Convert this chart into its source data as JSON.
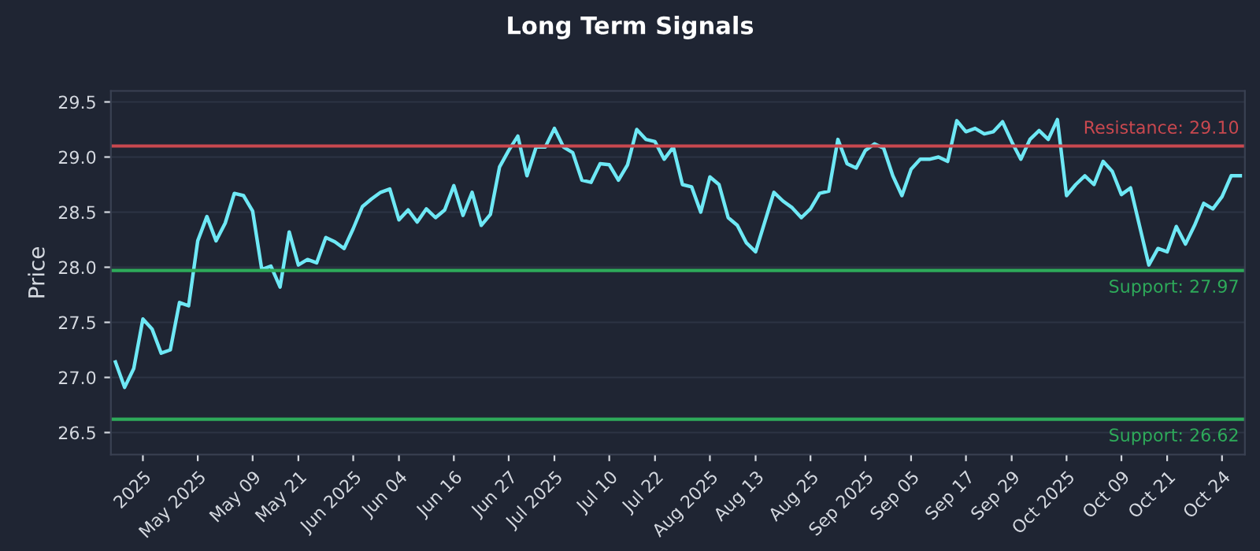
{
  "chart_data": {
    "type": "line",
    "title": "Long Term Signals",
    "ylabel": "Price",
    "categories": [
      null,
      null,
      null,
      "2025",
      null,
      null,
      null,
      null,
      null,
      "May 2025",
      null,
      null,
      null,
      null,
      null,
      "May 09",
      null,
      null,
      null,
      null,
      "May 21",
      null,
      null,
      null,
      null,
      null,
      "Jun 2025",
      null,
      null,
      null,
      null,
      "Jun 04",
      null,
      null,
      null,
      null,
      null,
      "Jun 16",
      null,
      null,
      null,
      null,
      null,
      "Jun 27",
      null,
      null,
      null,
      null,
      "Jul 2025",
      null,
      null,
      null,
      null,
      null,
      "Jul 10",
      null,
      null,
      null,
      null,
      "Jul 22",
      null,
      null,
      null,
      null,
      null,
      "Aug 2025",
      null,
      null,
      null,
      null,
      "Aug 13",
      null,
      null,
      null,
      null,
      null,
      "Aug 25",
      null,
      null,
      null,
      null,
      null,
      "Sep 2025",
      null,
      null,
      null,
      null,
      "Sep 05",
      null,
      null,
      null,
      null,
      null,
      "Sep 17",
      null,
      null,
      null,
      null,
      "Sep 29",
      null,
      null,
      null,
      null,
      null,
      "Oct 2025",
      null,
      null,
      null,
      null,
      null,
      "Oct 09",
      null,
      null,
      null,
      null,
      "Oct 21",
      null,
      null,
      null,
      null,
      null,
      "Oct 24",
      null,
      null
    ],
    "series": [
      {
        "color": "#6ee8f5",
        "values": [
          27.14,
          26.91,
          27.08,
          27.53,
          27.44,
          27.22,
          27.25,
          27.68,
          27.65,
          28.24,
          28.46,
          28.24,
          28.4,
          28.67,
          28.65,
          28.51,
          27.98,
          28.01,
          27.82,
          28.32,
          28.02,
          28.07,
          28.04,
          28.27,
          28.23,
          28.17,
          28.35,
          28.55,
          28.62,
          28.68,
          28.71,
          28.43,
          28.52,
          28.41,
          28.53,
          28.45,
          28.52,
          28.74,
          28.47,
          28.68,
          28.38,
          28.48,
          28.91,
          29.06,
          29.19,
          28.83,
          29.09,
          29.09,
          29.26,
          29.09,
          29.04,
          28.79,
          28.77,
          28.94,
          28.93,
          28.79,
          28.93,
          29.25,
          29.16,
          29.14,
          28.98,
          29.09,
          28.75,
          28.73,
          28.5,
          28.82,
          28.75,
          28.45,
          28.38,
          28.22,
          28.14,
          28.41,
          28.68,
          28.6,
          28.54,
          28.45,
          28.53,
          28.67,
          28.69,
          29.16,
          28.94,
          28.9,
          29.06,
          29.12,
          29.08,
          28.83,
          28.65,
          28.89,
          28.98,
          28.98,
          29.0,
          28.96,
          29.33,
          29.23,
          29.26,
          29.21,
          29.23,
          29.32,
          29.14,
          28.98,
          29.16,
          29.24,
          29.16,
          29.34,
          28.65,
          28.75,
          28.83,
          28.75,
          28.96,
          28.87,
          28.66,
          28.72,
          28.37,
          28.02,
          28.17,
          28.14,
          28.37,
          28.21,
          28.38,
          28.58,
          28.53,
          28.64,
          28.83,
          28.83
        ]
      }
    ],
    "ylim": [
      26.3,
      29.6
    ],
    "yticks": [
      26.5,
      {
        "value": 27,
        "label": "27.0"
      },
      27.5,
      {
        "value": 28,
        "label": "28.0"
      },
      28.5,
      {
        "value": 29,
        "label": "29.0"
      },
      29.5
    ],
    "grid": "y",
    "legend": false,
    "marker": "none",
    "line_style": "solid",
    "ref_lines": [
      {
        "axis": "y",
        "value": 29.1,
        "label": "Resistance: 29.10",
        "color": "#c9484f"
      },
      {
        "axis": "y",
        "value": 27.97,
        "label": "Support: 27.97",
        "color": "#2eaa5a"
      },
      {
        "axis": "y",
        "value": 26.62,
        "label": "Support: 26.62",
        "color": "#2eaa5a"
      }
    ]
  }
}
